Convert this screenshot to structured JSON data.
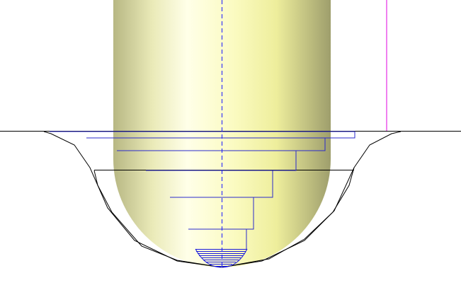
{
  "viewport": {
    "background": "#ffffff"
  },
  "model": {
    "body_color_light": "#ffffe0",
    "body_color_mid": "#f4f4a6",
    "body_color_dark": "#9c9c64",
    "axis_color": "#1a1aff",
    "axis_style": "dashed",
    "surface_color": "#000000",
    "level_line_color": "#2222cc",
    "marker_color": "#ff00ff"
  },
  "level_lines_count": 6,
  "fine_hatch_count": 9
}
